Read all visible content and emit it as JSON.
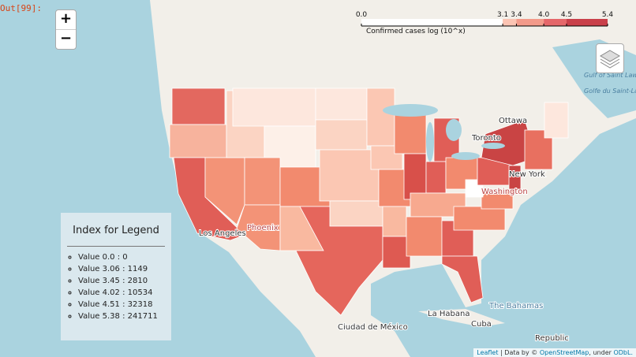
{
  "cell_label": "Out[99]:",
  "zoom": {
    "in": "+",
    "out": "−"
  },
  "colorbar": {
    "caption": "Confirmed cases log (10^x)",
    "range": [
      0,
      5.4
    ],
    "ticks": [
      {
        "value": 0,
        "label": "0.0"
      },
      3.1,
      3.4,
      {
        "value": 4,
        "label": "4.0"
      },
      4.5,
      5.4
    ],
    "colors": [
      "#ffffff",
      "#fcc4b3",
      "#f39a8a",
      "#e5676a",
      "#c9404a"
    ]
  },
  "places": [
    "Ottawa",
    "Toronto",
    "New York",
    "Washington",
    "Phoenix",
    "Los Angeles",
    "Ciudad de México",
    "La Habana",
    "Cuba",
    "The Bahamas",
    "Republic",
    "Gulf of Saint Lawrence",
    "Golfe du Saint-Laurent"
  ],
  "legend": {
    "title": "Index for Legend",
    "items": [
      "Value 0.0 : 0",
      "Value 3.06 : 1149",
      "Value 3.45 : 2810",
      "Value 4.02 : 10534",
      "Value 4.51 : 32318",
      "Value 5.38 : 241711"
    ]
  },
  "attribution": [
    "Leaflet",
    " | Data by © ",
    "OpenStreetMap",
    ", under ",
    "ODbL."
  ]
}
